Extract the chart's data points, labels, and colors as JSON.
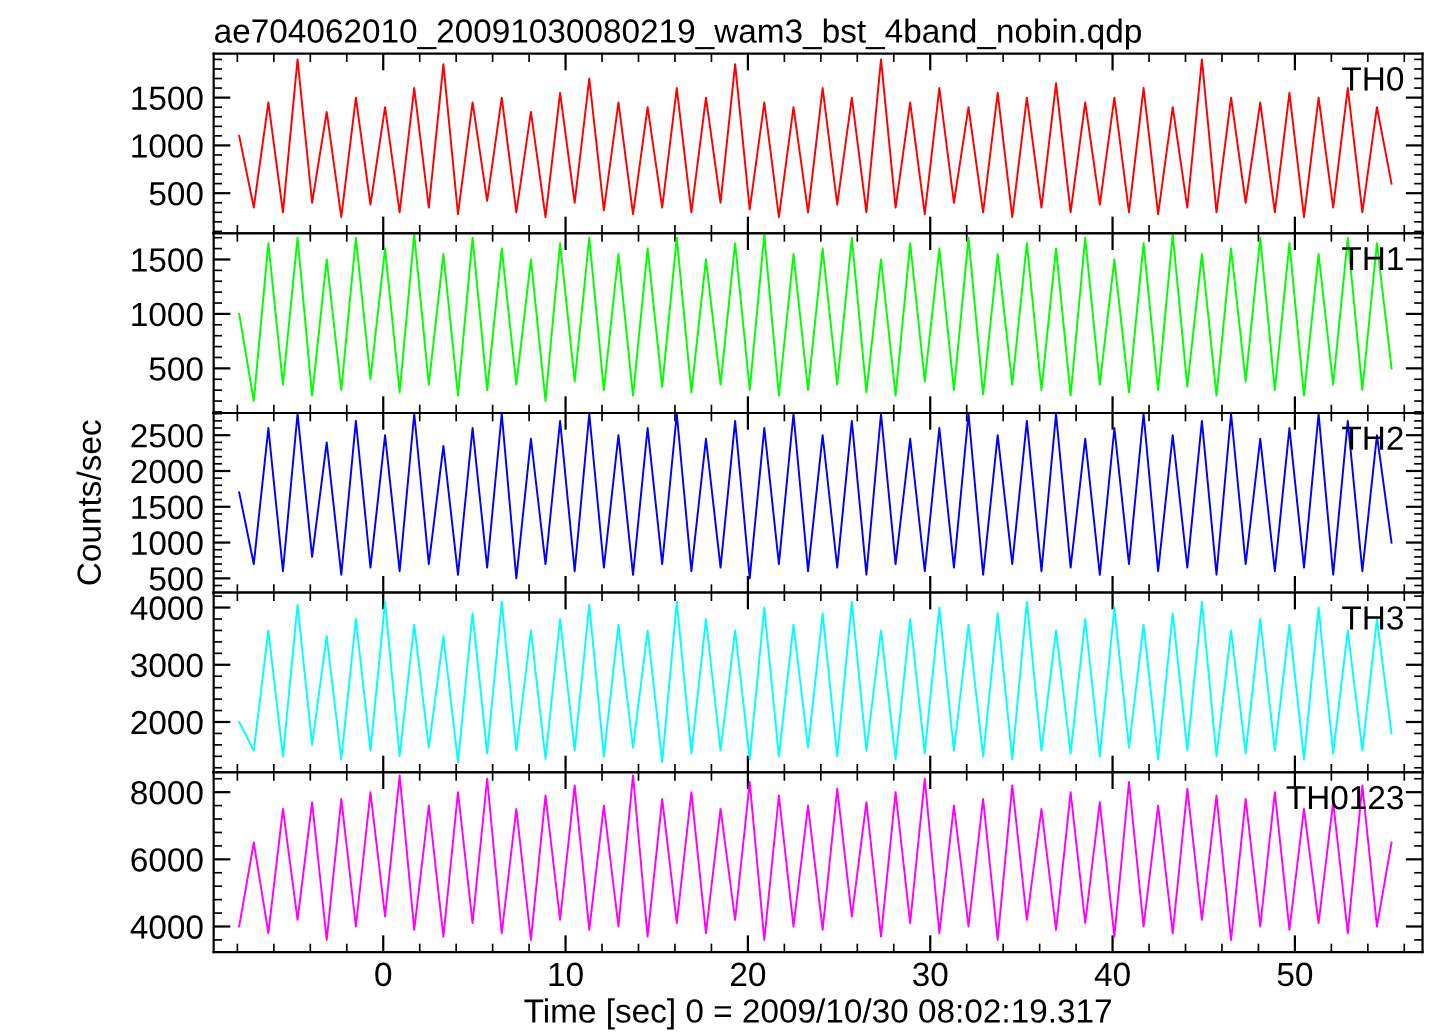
{
  "chart_data": [
    {
      "type": "line",
      "title": "ae704062010_20091030080219_wam3_bst_4band_nobin.qdp",
      "tick_labels": "y",
      "xlim": [
        -9.3,
        57
      ],
      "xticks": [
        0,
        10,
        20,
        30,
        40,
        50
      ],
      "ylim": [
        80,
        1960
      ],
      "yticks": [
        500,
        1000,
        1500
      ],
      "x": [
        -7.9,
        -7.1,
        -6.3,
        -5.5,
        -4.7,
        -3.9,
        -3.1,
        -2.3,
        -1.5,
        -0.7,
        0.1,
        0.9,
        1.7,
        2.5,
        3.3,
        4.1,
        4.9,
        5.7,
        6.5,
        7.3,
        8.1,
        8.9,
        9.7,
        10.5,
        11.3,
        12.1,
        12.9,
        13.7,
        14.5,
        15.3,
        16.1,
        16.9,
        17.7,
        18.5,
        19.3,
        20.1,
        20.9,
        21.7,
        22.5,
        23.3,
        24.1,
        24.9,
        25.7,
        26.5,
        27.3,
        28.1,
        28.9,
        29.7,
        30.5,
        31.3,
        32.1,
        32.9,
        33.7,
        34.5,
        35.3,
        36.1,
        36.9,
        37.7,
        38.5,
        39.3,
        40.1,
        40.9,
        41.7,
        42.5,
        43.3,
        44.1,
        44.9,
        45.7,
        46.5,
        47.3,
        48.1,
        48.9,
        49.7,
        50.5,
        51.3,
        52.1,
        52.9,
        53.7,
        54.5,
        55.3
      ],
      "series": [
        {
          "name": "TH0",
          "color": "#ff0000",
          "values": [
            1100,
            350,
            1450,
            300,
            1900,
            400,
            1350,
            250,
            1500,
            380,
            1400,
            300,
            1600,
            350,
            1850,
            280,
            1450,
            420,
            1500,
            300,
            1350,
            250,
            1550,
            400,
            1700,
            320,
            1450,
            280,
            1400,
            350,
            1600,
            300,
            1500,
            400,
            1850,
            330,
            1450,
            250,
            1400,
            300,
            1600,
            380,
            1500,
            300,
            1900,
            350,
            1450,
            280,
            1600,
            400,
            1400,
            300,
            1550,
            250,
            1500,
            350,
            1650,
            300,
            1450,
            380,
            1500,
            300,
            1600,
            280,
            1400,
            350,
            1900,
            300,
            1500,
            400,
            1450,
            300,
            1550,
            250,
            1500,
            350,
            1600,
            300,
            1400,
            600
          ]
        }
      ]
    },
    {
      "type": "line",
      "tick_labels": "y",
      "xlim": [
        -9.3,
        57
      ],
      "xticks": [
        0,
        10,
        20,
        30,
        40,
        50
      ],
      "ylim": [
        90,
        1740
      ],
      "yticks": [
        500,
        1000,
        1500
      ],
      "x": [
        -7.9,
        -7.1,
        -6.3,
        -5.5,
        -4.7,
        -3.9,
        -3.1,
        -2.3,
        -1.5,
        -0.7,
        0.1,
        0.9,
        1.7,
        2.5,
        3.3,
        4.1,
        4.9,
        5.7,
        6.5,
        7.3,
        8.1,
        8.9,
        9.7,
        10.5,
        11.3,
        12.1,
        12.9,
        13.7,
        14.5,
        15.3,
        16.1,
        16.9,
        17.7,
        18.5,
        19.3,
        20.1,
        20.9,
        21.7,
        22.5,
        23.3,
        24.1,
        24.9,
        25.7,
        26.5,
        27.3,
        28.1,
        28.9,
        29.7,
        30.5,
        31.3,
        32.1,
        32.9,
        33.7,
        34.5,
        35.3,
        36.1,
        36.9,
        37.7,
        38.5,
        39.3,
        40.1,
        40.9,
        41.7,
        42.5,
        43.3,
        44.1,
        44.9,
        45.7,
        46.5,
        47.3,
        48.1,
        48.9,
        49.7,
        50.5,
        51.3,
        52.1,
        52.9,
        53.7,
        54.5,
        55.3
      ],
      "series": [
        {
          "name": "TH1",
          "color": "#00ff00",
          "values": [
            1000,
            200,
            1650,
            350,
            1700,
            250,
            1500,
            300,
            1700,
            400,
            1600,
            280,
            1730,
            350,
            1550,
            250,
            1700,
            300,
            1600,
            350,
            1500,
            200,
            1650,
            380,
            1700,
            300,
            1550,
            250,
            1600,
            330,
            1700,
            280,
            1500,
            350,
            1650,
            300,
            1730,
            250,
            1550,
            300,
            1600,
            350,
            1700,
            280,
            1500,
            250,
            1650,
            380,
            1600,
            300,
            1700,
            260,
            1550,
            350,
            1650,
            300,
            1600,
            250,
            1700,
            350,
            1500,
            280,
            1650,
            300,
            1730,
            330,
            1550,
            250,
            1600,
            380,
            1700,
            300,
            1650,
            250,
            1550,
            350,
            1700,
            300,
            1650,
            500
          ]
        }
      ]
    },
    {
      "type": "line",
      "ylabel": "Counts/sec",
      "tick_labels": "y",
      "xlim": [
        -9.3,
        57
      ],
      "xticks": [
        0,
        10,
        20,
        30,
        40,
        50
      ],
      "ylim": [
        300,
        2810
      ],
      "yticks": [
        500,
        1000,
        1500,
        2000,
        2500
      ],
      "x": [
        -7.9,
        -7.1,
        -6.3,
        -5.5,
        -4.7,
        -3.9,
        -3.1,
        -2.3,
        -1.5,
        -0.7,
        0.1,
        0.9,
        1.7,
        2.5,
        3.3,
        4.1,
        4.9,
        5.7,
        6.5,
        7.3,
        8.1,
        8.9,
        9.7,
        10.5,
        11.3,
        12.1,
        12.9,
        13.7,
        14.5,
        15.3,
        16.1,
        16.9,
        17.7,
        18.5,
        19.3,
        20.1,
        20.9,
        21.7,
        22.5,
        23.3,
        24.1,
        24.9,
        25.7,
        26.5,
        27.3,
        28.1,
        28.9,
        29.7,
        30.5,
        31.3,
        32.1,
        32.9,
        33.7,
        34.5,
        35.3,
        36.1,
        36.9,
        37.7,
        38.5,
        39.3,
        40.1,
        40.9,
        41.7,
        42.5,
        43.3,
        44.1,
        44.9,
        45.7,
        46.5,
        47.3,
        48.1,
        48.9,
        49.7,
        50.5,
        51.3,
        52.1,
        52.9,
        53.7,
        54.5,
        55.3
      ],
      "series": [
        {
          "name": "TH2",
          "color": "#0000ff",
          "values": [
            1700,
            700,
            2600,
            600,
            2800,
            800,
            2400,
            550,
            2700,
            650,
            2500,
            600,
            2800,
            700,
            2350,
            550,
            2600,
            650,
            2800,
            500,
            2450,
            700,
            2700,
            600,
            2800,
            650,
            2500,
            550,
            2600,
            700,
            2800,
            600,
            2450,
            650,
            2700,
            500,
            2600,
            700,
            2800,
            600,
            2500,
            650,
            2700,
            550,
            2800,
            700,
            2450,
            600,
            2600,
            650,
            2800,
            550,
            2500,
            700,
            2700,
            600,
            2800,
            650,
            2450,
            550,
            2600,
            700,
            2800,
            600,
            2500,
            650,
            2700,
            550,
            2800,
            700,
            2450,
            600,
            2600,
            650,
            2800,
            550,
            2700,
            600,
            2500,
            1000
          ]
        }
      ]
    },
    {
      "type": "line",
      "tick_labels": "y",
      "xlim": [
        -9.3,
        57
      ],
      "xticks": [
        0,
        10,
        20,
        30,
        40,
        50
      ],
      "ylim": [
        1120,
        4260
      ],
      "yticks": [
        2000,
        3000,
        4000
      ],
      "x": [
        -7.9,
        -7.1,
        -6.3,
        -5.5,
        -4.7,
        -3.9,
        -3.1,
        -2.3,
        -1.5,
        -0.7,
        0.1,
        0.9,
        1.7,
        2.5,
        3.3,
        4.1,
        4.9,
        5.7,
        6.5,
        7.3,
        8.1,
        8.9,
        9.7,
        10.5,
        11.3,
        12.1,
        12.9,
        13.7,
        14.5,
        15.3,
        16.1,
        16.9,
        17.7,
        18.5,
        19.3,
        20.1,
        20.9,
        21.7,
        22.5,
        23.3,
        24.1,
        24.9,
        25.7,
        26.5,
        27.3,
        28.1,
        28.9,
        29.7,
        30.5,
        31.3,
        32.1,
        32.9,
        33.7,
        34.5,
        35.3,
        36.1,
        36.9,
        37.7,
        38.5,
        39.3,
        40.1,
        40.9,
        41.7,
        42.5,
        43.3,
        44.1,
        44.9,
        45.7,
        46.5,
        47.3,
        48.1,
        48.9,
        49.7,
        50.5,
        51.3,
        52.1,
        52.9,
        53.7,
        54.5,
        55.3
      ],
      "series": [
        {
          "name": "TH3",
          "color": "#00ffff",
          "values": [
            2000,
            1500,
            3600,
            1400,
            4050,
            1600,
            3500,
            1350,
            3800,
            1500,
            4100,
            1400,
            3700,
            1550,
            3500,
            1300,
            3900,
            1450,
            4100,
            1500,
            3600,
            1350,
            3800,
            1500,
            4050,
            1400,
            3700,
            1550,
            3600,
            1300,
            4100,
            1450,
            3800,
            1500,
            3600,
            1350,
            4000,
            1400,
            3700,
            1550,
            3900,
            1400,
            4100,
            1500,
            3600,
            1350,
            3800,
            1450,
            4000,
            1500,
            3700,
            1400,
            3900,
            1350,
            4100,
            1500,
            3600,
            1450,
            3800,
            1400,
            4000,
            1550,
            3700,
            1350,
            3900,
            1500,
            4100,
            1400,
            3600,
            1450,
            3800,
            1500,
            3700,
            1350,
            4000,
            1450,
            3600,
            1500,
            3800,
            1800
          ]
        }
      ]
    },
    {
      "type": "line",
      "xlabel": "Time [sec] 0 = 2009/10/30 08:02:19.317",
      "xlim": [
        -9.3,
        57
      ],
      "xticks": [
        0,
        10,
        20,
        30,
        40,
        50
      ],
      "ylim": [
        3240,
        8590
      ],
      "yticks": [
        4000,
        6000,
        8000
      ],
      "x": [
        -7.9,
        -7.1,
        -6.3,
        -5.5,
        -4.7,
        -3.9,
        -3.1,
        -2.3,
        -1.5,
        -0.7,
        0.1,
        0.9,
        1.7,
        2.5,
        3.3,
        4.1,
        4.9,
        5.7,
        6.5,
        7.3,
        8.1,
        8.9,
        9.7,
        10.5,
        11.3,
        12.1,
        12.9,
        13.7,
        14.5,
        15.3,
        16.1,
        16.9,
        17.7,
        18.5,
        19.3,
        20.1,
        20.9,
        21.7,
        22.5,
        23.3,
        24.1,
        24.9,
        25.7,
        26.5,
        27.3,
        28.1,
        28.9,
        29.7,
        30.5,
        31.3,
        32.1,
        32.9,
        33.7,
        34.5,
        35.3,
        36.1,
        36.9,
        37.7,
        38.5,
        39.3,
        40.1,
        40.9,
        41.7,
        42.5,
        43.3,
        44.1,
        44.9,
        45.7,
        46.5,
        47.3,
        48.1,
        48.9,
        49.7,
        50.5,
        51.3,
        52.1,
        52.9,
        53.7,
        54.5,
        55.3
      ],
      "series": [
        {
          "name": "TH0123",
          "color": "#ff00ff",
          "values": [
            4000,
            6500,
            3800,
            7500,
            4200,
            7700,
            3600,
            7800,
            4000,
            8000,
            4300,
            8500,
            3900,
            7600,
            3700,
            8000,
            4100,
            8400,
            3800,
            7500,
            3600,
            7900,
            4200,
            8200,
            3900,
            7600,
            4000,
            8500,
            3700,
            7800,
            4100,
            8000,
            3800,
            7500,
            4200,
            8300,
            3600,
            7900,
            4000,
            7600,
            3900,
            8100,
            4300,
            7700,
            3700,
            8000,
            4100,
            8400,
            3800,
            7600,
            4000,
            7800,
            3600,
            8200,
            4200,
            7500,
            3900,
            8000,
            4100,
            7700,
            3700,
            8300,
            4000,
            7600,
            3800,
            8100,
            4200,
            7900,
            3600,
            7800,
            4000,
            8000,
            3900,
            7500,
            4100,
            7700,
            3800,
            8200,
            4000,
            6500
          ]
        }
      ]
    }
  ]
}
